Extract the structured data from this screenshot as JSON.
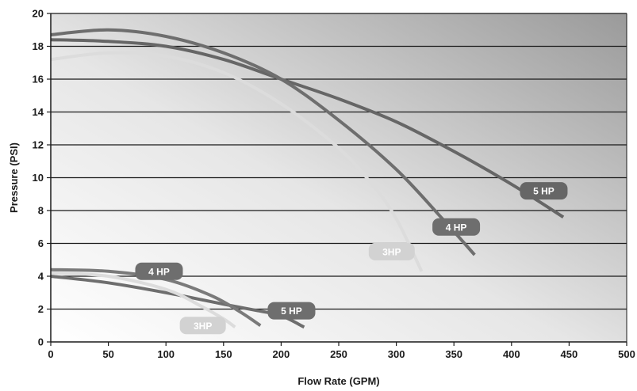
{
  "chart_data": {
    "type": "line",
    "title": "",
    "xlabel": "Flow Rate (GPM)",
    "ylabel": "Pressure (PSI)",
    "xlim": [
      0,
      500
    ],
    "ylim": [
      0,
      20
    ],
    "x_ticks": [
      "0",
      "50",
      "100",
      "150",
      "200",
      "250",
      "300",
      "350",
      "400",
      "450",
      "500"
    ],
    "y_ticks": [
      "0",
      "2",
      "4",
      "6",
      "8",
      "10",
      "12",
      "14",
      "16",
      "18",
      "20"
    ],
    "grid": "horizontal",
    "background": "gradient",
    "series": [
      {
        "name": "5 HP",
        "group": "upper",
        "color": "#666666",
        "points": [
          [
            0,
            18.4
          ],
          [
            50,
            18.3
          ],
          [
            100,
            18.0
          ],
          [
            150,
            17.2
          ],
          [
            200,
            16.0
          ],
          [
            250,
            14.8
          ],
          [
            300,
            13.4
          ],
          [
            350,
            11.6
          ],
          [
            400,
            9.6
          ],
          [
            445,
            7.6
          ]
        ]
      },
      {
        "name": "4 HP",
        "group": "upper",
        "color": "#6e6e6e",
        "points": [
          [
            0,
            18.7
          ],
          [
            50,
            19.0
          ],
          [
            100,
            18.6
          ],
          [
            150,
            17.6
          ],
          [
            200,
            16.0
          ],
          [
            250,
            13.5
          ],
          [
            300,
            10.5
          ],
          [
            340,
            7.5
          ],
          [
            368,
            5.3
          ]
        ]
      },
      {
        "name": "3HP",
        "group": "upper",
        "color": "#dcdcdc",
        "points": [
          [
            0,
            17.2
          ],
          [
            50,
            17.6
          ],
          [
            100,
            17.4
          ],
          [
            150,
            16.4
          ],
          [
            200,
            14.5
          ],
          [
            250,
            11.8
          ],
          [
            280,
            9.5
          ],
          [
            300,
            7.5
          ],
          [
            322,
            4.3
          ]
        ]
      },
      {
        "name": "5 HP",
        "group": "lower",
        "color": "#6e6e6e",
        "points": [
          [
            0,
            4.0
          ],
          [
            50,
            3.6
          ],
          [
            100,
            3.0
          ],
          [
            150,
            2.3
          ],
          [
            180,
            1.9
          ],
          [
            200,
            1.6
          ],
          [
            220,
            0.9
          ]
        ]
      },
      {
        "name": "4 HP",
        "group": "lower",
        "color": "#7a7a7a",
        "points": [
          [
            0,
            4.4
          ],
          [
            50,
            4.3
          ],
          [
            100,
            3.8
          ],
          [
            140,
            2.8
          ],
          [
            165,
            1.8
          ],
          [
            182,
            1.0
          ]
        ]
      },
      {
        "name": "3HP",
        "group": "lower",
        "color": "#dcdcdc",
        "points": [
          [
            0,
            4.2
          ],
          [
            50,
            4.0
          ],
          [
            100,
            3.2
          ],
          [
            130,
            2.2
          ],
          [
            150,
            1.4
          ],
          [
            160,
            0.9
          ]
        ]
      }
    ],
    "curve_labels": [
      {
        "text": "5 HP",
        "x": 428,
        "y": 9.2,
        "color": "#666666"
      },
      {
        "text": "4 HP",
        "x": 352,
        "y": 7.0,
        "color": "#6e6e6e"
      },
      {
        "text": "3HP",
        "x": 296,
        "y": 5.5,
        "color": "#d2d2d2"
      },
      {
        "text": "4 HP",
        "x": 94,
        "y": 4.3,
        "color": "#6e6e6e"
      },
      {
        "text": "5 HP",
        "x": 209,
        "y": 1.9,
        "color": "#6e6e6e"
      },
      {
        "text": "3HP",
        "x": 132,
        "y": 1.0,
        "color": "#d2d2d2"
      }
    ]
  }
}
